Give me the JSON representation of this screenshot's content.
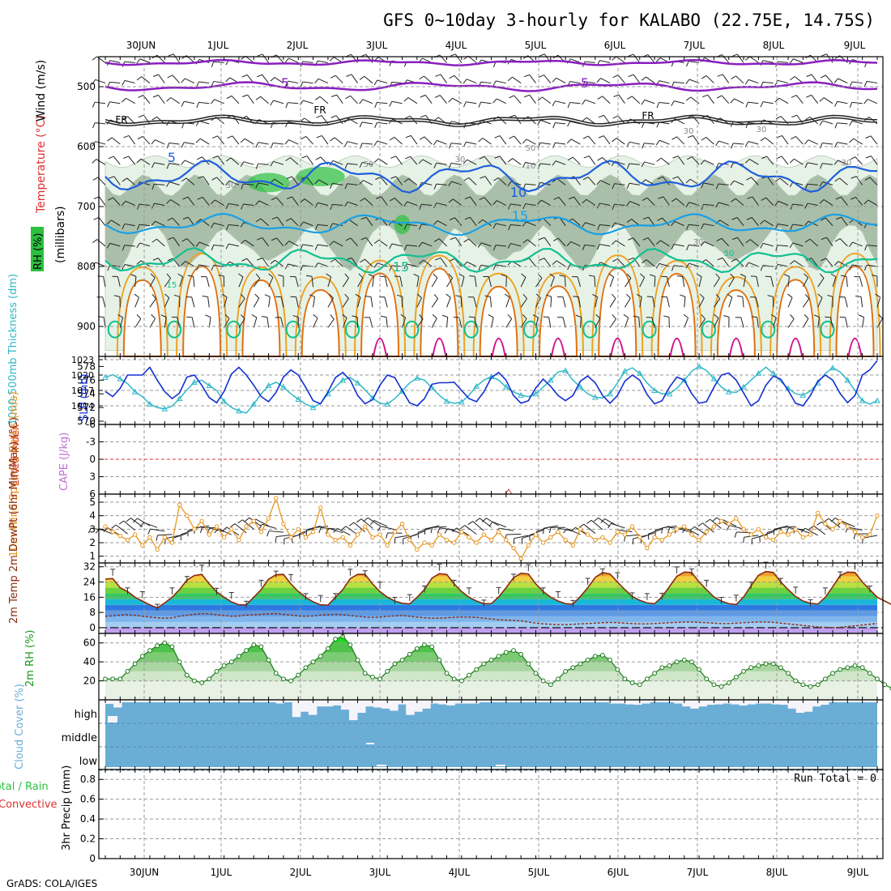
{
  "chart_data": {
    "type": "meteogram",
    "title": "GFS 0~10day 3-hourly for KALABO (22.75E, 14.75S)",
    "footer": "GrADS: COLA/IGES",
    "dates": [
      "30JUN",
      "1JUL",
      "2JUL",
      "3JUL",
      "4JUL",
      "5JUL",
      "6JUL",
      "7JUL",
      "8JUL",
      "9JUL"
    ],
    "colors": {
      "purple": "#8a1fbf",
      "blue": "#1f5fdc",
      "cyan": "#19a0e6",
      "teal": "#10c090",
      "orange": "#f0a020",
      "darkorange": "#e07010",
      "magenta": "#d0108a",
      "green": "#2cc040",
      "rh_dark": "#a9bfa9",
      "rh_light": "#e6f2e6",
      "thick": "#30b8c8",
      "slp": "#1430d0",
      "wind": "#e8961e",
      "cloud": "#6aaed6",
      "lifted": "#e03030",
      "cape": "#c070d0",
      "precip_total": "#2cc040",
      "precip_conv": "#e03030"
    },
    "upper_air": {
      "ylabel_parts": [
        "RH (%)",
        "Temperature (°C)",
        "Wind (m/s)"
      ],
      "yunit_label": "(millibars)",
      "pressure_ticks": [
        500,
        600,
        700,
        800,
        900
      ],
      "ylim": [
        450,
        950
      ],
      "contour_labels": [
        "5",
        "5",
        "FR",
        "FR",
        "FR",
        "5",
        "10",
        "15",
        "15",
        "15",
        "50",
        "50",
        "10",
        "50",
        "30",
        "30",
        "30",
        "30",
        "30",
        "30"
      ]
    },
    "thickness_slp": {
      "ylabel_left": "1000-500mb Thickness (dm)",
      "ylabel_right": "SLP (mb)",
      "left_ticks": [
        570,
        572,
        574,
        576,
        578
      ],
      "right_ticks": [
        1014,
        1017,
        1020,
        1023
      ],
      "left_lim": [
        570,
        579
      ],
      "right_lim": [
        1011,
        1023
      ],
      "thickness": [
        576.4,
        576.8,
        576.2,
        575.5,
        574.3,
        573.6,
        572.5,
        572.0,
        571.8,
        572.2,
        573.3,
        574.6,
        575.7,
        576.0,
        575.2,
        574.5,
        572.9,
        572.0,
        571.5,
        571.2,
        572.5,
        574.0,
        575.2,
        575.7,
        575.0,
        574.0,
        573.2,
        572.5,
        572.0,
        572.6,
        574.0,
        575.0,
        576.0,
        576.4,
        575.6,
        574.6,
        573.4,
        572.6,
        572.5,
        573.3,
        574.4,
        575.6,
        576.3,
        576.0,
        574.9,
        573.8,
        572.9,
        572.6,
        572.8,
        573.8,
        575.1,
        576.0,
        576.5,
        576.0,
        575.0,
        574.3,
        573.8,
        573.6,
        574.0,
        575.0,
        576.0,
        577.2,
        577.4,
        576.0,
        575.0,
        574.0,
        573.5,
        573.4,
        574.0,
        575.6,
        577.3,
        577.8,
        577.0,
        575.6,
        574.5,
        574.0,
        574.0,
        574.8,
        576.0,
        577.3,
        578.0,
        577.4,
        576.2,
        575.0,
        574.3,
        574.2,
        575.0,
        576.0,
        577.0,
        577.9,
        577.0,
        575.8,
        574.8,
        574.0,
        573.8,
        574.4,
        575.6,
        577.0,
        577.8,
        577.2,
        576.0,
        574.5,
        573.0,
        572.5,
        573.0
      ],
      "slp": [
        1016.8,
        1015.8,
        1017.4,
        1020.0,
        1020.0,
        1020.0,
        1021.5,
        1019.0,
        1016.8,
        1015.4,
        1016.5,
        1019.6,
        1020.0,
        1018.0,
        1015.6,
        1014.6,
        1016.8,
        1020.2,
        1021.5,
        1020.0,
        1018.0,
        1015.8,
        1014.8,
        1016.6,
        1019.6,
        1021.0,
        1020.0,
        1017.6,
        1015.0,
        1014.4,
        1016.7,
        1019.5,
        1020.5,
        1019.0,
        1016.0,
        1014.4,
        1015.2,
        1018.0,
        1020.0,
        1019.5,
        1017.0,
        1014.6,
        1014.0,
        1015.4,
        1018.2,
        1018.5,
        1018.5,
        1018.6,
        1017.0,
        1015.4,
        1014.8,
        1016.7,
        1019.5,
        1020.5,
        1019.0,
        1016.0,
        1014.5,
        1015.0,
        1017.5,
        1019.2,
        1017.8,
        1016.0,
        1015.0,
        1016.0,
        1018.8,
        1019.8,
        1018.5,
        1016.0,
        1014.5,
        1016.0,
        1018.8,
        1020.0,
        1019.0,
        1016.2,
        1014.4,
        1015.0,
        1017.6,
        1019.6,
        1019.0,
        1016.4,
        1014.5,
        1014.8,
        1017.6,
        1020.0,
        1020.4,
        1019.0,
        1016.5,
        1014.0,
        1015.0,
        1018.0,
        1019.8,
        1019.2,
        1017.0,
        1014.5,
        1014.0,
        1016.0,
        1018.8,
        1020.0,
        1019.0,
        1016.4,
        1014.6,
        1016.0,
        1020.0,
        1021.0,
        1022.8
      ]
    },
    "stability": {
      "ylabel_left": "Lifted Index",
      "ylabel_right": "CAPE (J/kg)",
      "ticks": [
        "-6",
        "-3",
        "0",
        "3",
        "6"
      ],
      "li_lim": [
        -6,
        6
      ],
      "li_zero": 0
    },
    "wind10m": {
      "ylabel": "10m Wind Speed & Barbs (m/s)",
      "ticks": [
        1,
        2,
        3,
        4,
        5
      ],
      "ylim": [
        0.5,
        5.6
      ],
      "speed": [
        3.2,
        2.8,
        2.5,
        2.2,
        2.6,
        1.8,
        2.4,
        1.5,
        2.4,
        2.0,
        4.8,
        4.0,
        3.0,
        3.6,
        2.6,
        3.2,
        2.4,
        3.0,
        2.2,
        3.2,
        3.6,
        2.8,
        3.8,
        5.3,
        3.4,
        2.4,
        3.0,
        2.4,
        2.8,
        4.6,
        2.6,
        2.2,
        2.4,
        1.8,
        2.6,
        3.2,
        2.4,
        2.6,
        1.8,
        2.8,
        3.4,
        2.2,
        1.5,
        2.0,
        1.8,
        2.6,
        2.2,
        2.0,
        2.8,
        2.4,
        2.0,
        2.6,
        2.2,
        2.8,
        2.2,
        1.6,
        0.8,
        1.8,
        2.6,
        2.0,
        2.4,
        2.8,
        2.2,
        1.8,
        3.0,
        2.6,
        2.2,
        2.4,
        2.0,
        2.8,
        2.6,
        3.2,
        2.4,
        1.6,
        2.4,
        2.2,
        2.6,
        3.0,
        3.2,
        2.6,
        2.2,
        2.8,
        3.2,
        3.6,
        3.4,
        3.8,
        3.0,
        2.6,
        3.0,
        2.4,
        2.2,
        2.8,
        2.6,
        3.0,
        2.4,
        2.6,
        4.2,
        3.4,
        3.0,
        3.6,
        3.2,
        2.8,
        2.4,
        2.6,
        4.0
      ]
    },
    "temp2m": {
      "ylabel": "2m Temp 2m DewPt (6hr Min/Max) (°C)",
      "ticks": [
        0,
        8,
        16,
        24,
        32
      ],
      "ylim": [
        -3,
        34
      ],
      "temp": [
        25.6,
        25.8,
        21.0,
        19.0,
        16.0,
        14.0,
        12.0,
        10.4,
        13.0,
        16.0,
        20.0,
        25.0,
        27.4,
        28.0,
        23.0,
        18.8,
        16.0,
        13.6,
        12.0,
        12.0,
        16.0,
        20.0,
        25.5,
        27.8,
        28.0,
        23.0,
        19.0,
        16.0,
        13.6,
        12.0,
        11.8,
        16.0,
        20.0,
        25.8,
        28.0,
        28.0,
        23.0,
        19.0,
        16.0,
        14.0,
        12.8,
        12.5,
        16.0,
        20.0,
        26.0,
        28.4,
        28.0,
        23.0,
        19.0,
        16.0,
        14.0,
        12.6,
        12.6,
        16.2,
        21.0,
        26.2,
        28.6,
        28.2,
        23.0,
        19.0,
        16.0,
        14.0,
        12.6,
        12.4,
        16.4,
        21.0,
        26.4,
        29.0,
        28.2,
        24.0,
        20.0,
        16.4,
        14.4,
        13.0,
        12.6,
        16.2,
        21.5,
        27.0,
        29.2,
        29.0,
        24.0,
        20.0,
        16.2,
        14.0,
        12.6,
        12.2,
        16.2,
        22.0,
        27.5,
        29.5,
        29.0,
        24.0,
        20.0,
        16.4,
        14.0,
        12.8,
        12.4,
        16.0,
        21.5,
        27.4,
        29.2,
        29.0,
        24.0,
        20.0,
        16.0,
        14.0,
        12.0,
        10.0,
        11.0
      ],
      "dewpt": [
        6.0,
        6.2,
        6.6,
        6.8,
        6.5,
        6.0,
        5.6,
        5.2,
        5.0,
        5.2,
        6.0,
        6.5,
        7.0,
        7.4,
        7.2,
        6.8,
        6.4,
        6.0,
        6.2,
        6.6,
        6.8,
        7.0,
        7.2,
        7.4,
        7.0,
        6.6,
        6.2,
        6.0,
        6.2,
        6.6,
        6.8,
        7.0,
        6.8,
        6.4,
        6.0,
        5.6,
        5.4,
        5.6,
        6.0,
        6.2,
        6.4,
        6.0,
        5.6,
        5.2,
        5.0,
        5.0,
        5.2,
        5.4,
        5.6,
        5.6,
        5.4,
        5.0,
        4.6,
        4.2,
        4.0,
        3.8,
        3.6,
        3.0,
        2.4,
        2.0,
        1.8,
        1.6,
        1.6,
        1.8,
        2.0,
        2.2,
        2.4,
        2.6,
        2.8,
        2.6,
        2.4,
        2.2,
        2.0,
        2.0,
        2.2,
        2.4,
        2.6,
        2.8,
        3.0,
        3.0,
        2.8,
        2.6,
        2.4,
        2.2,
        2.2,
        2.4,
        2.6,
        2.8,
        3.0,
        3.0,
        2.8,
        2.4,
        2.0,
        1.6,
        1.2,
        0.8,
        0.4,
        0.2,
        0.0,
        0.2,
        0.6,
        1.0,
        1.4,
        1.8,
        2.2
      ]
    },
    "rh2m": {
      "ylabel": "2m RH (%)",
      "ticks": [
        20,
        40,
        60
      ],
      "ylim": [
        0,
        70
      ],
      "rh": [
        22,
        22,
        22,
        30,
        38,
        46,
        52,
        57,
        60,
        56,
        40,
        26,
        20,
        18,
        22,
        30,
        36,
        40,
        46,
        52,
        58,
        56,
        42,
        28,
        22,
        20,
        26,
        34,
        40,
        46,
        54,
        64,
        67,
        58,
        42,
        28,
        24,
        22,
        30,
        38,
        42,
        48,
        54,
        58,
        56,
        42,
        28,
        22,
        20,
        26,
        32,
        38,
        42,
        46,
        50,
        52,
        48,
        38,
        28,
        20,
        16,
        22,
        30,
        34,
        38,
        42,
        46,
        47,
        42,
        32,
        22,
        18,
        16,
        22,
        28,
        34,
        36,
        40,
        42,
        40,
        32,
        22,
        16,
        14,
        18,
        24,
        30,
        34,
        36,
        38,
        38,
        34,
        28,
        20,
        16,
        14,
        16,
        22,
        28,
        32,
        34,
        36,
        34,
        28,
        22,
        16,
        12,
        14,
        18,
        22,
        28,
        34,
        38,
        42,
        40
      ]
    },
    "cloud": {
      "ylabel": "Cloud Cover (%)",
      "levels": [
        "high",
        "middle",
        "low"
      ],
      "high_gaps": [
        0.08,
        0.25,
        0,
        0,
        0,
        0,
        0,
        0,
        0,
        0,
        0,
        0,
        0,
        0,
        0,
        0,
        0,
        0,
        0,
        0,
        0,
        0.06,
        0,
        0.7,
        0.45,
        0.6,
        0.2,
        0.2,
        0.15,
        0.35,
        0.85,
        0.5,
        0.2,
        0.25,
        0.3,
        0.4,
        0.1,
        0.6,
        0.45,
        0.3,
        0.06,
        0.1,
        0.15,
        0.06,
        0.06,
        0.06,
        0,
        0,
        0,
        0,
        0,
        0,
        0,
        0,
        0,
        0,
        0,
        0,
        0,
        0,
        0,
        0,
        0.06,
        0.06,
        0.1,
        0.12,
        0.06,
        0,
        0,
        0,
        0.06,
        0.2,
        0.3,
        0.2,
        0.12,
        0.1,
        0.06,
        0.1,
        0.15,
        0.1,
        0.06,
        0.06,
        0.1,
        0.12,
        0.3,
        0.5,
        0.45,
        0.2,
        0.12,
        0,
        0,
        0,
        0,
        0,
        0
      ],
      "high_flag_index": [
        1
      ]
    },
    "precip": {
      "ylabel_left_parts": [
        "Total / Rain",
        "Convective"
      ],
      "ylabel": "3hr Precip (mm)",
      "ticks": [
        "0",
        "0.2",
        "0.4",
        "0.6",
        "0.8"
      ],
      "ylim": [
        0,
        0.9
      ],
      "run_total": "Run Total = 0"
    }
  }
}
